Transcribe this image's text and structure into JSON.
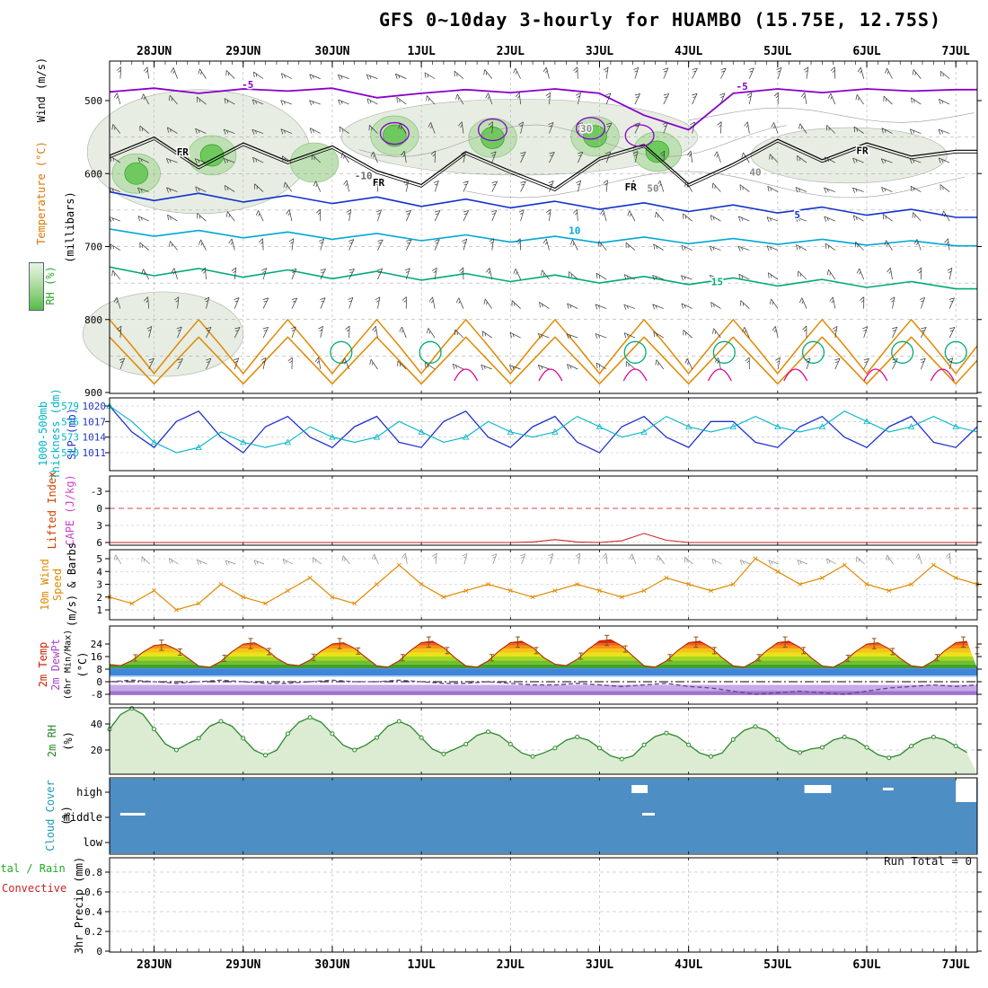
{
  "title": "GFS 0~10day 3-hourly for HUAMBO (15.75E, 12.75S)",
  "axis": {
    "day_labels": [
      "28JUN",
      "29JUN",
      "30JUN",
      "1JUL",
      "2JUL",
      "3JUL",
      "4JUL",
      "5JUL",
      "6JUL",
      "7JUL"
    ]
  },
  "side_labels": {
    "wind_ms": "Wind (m/s)",
    "temperature": "Temperature (°C)",
    "rh": "RH (%)",
    "millibars": "(millibars)",
    "thickness_a": "1000-500mb",
    "thickness_b": "Thickness (dm)",
    "slp": "SLP (mb)",
    "lifted_index": "Lifted Index",
    "cape": "CAPE (J/kg)",
    "wind10_a": "10m Wind",
    "wind10_b": "Speed",
    "wind10_c": "(m/s) & Barbs",
    "t2m_a": "2m Temp",
    "t2m_b": "2m DewPt",
    "t2m_c": "(6hr Min/Max)",
    "t2m_d": "(°C)",
    "rh2m_a": "2m RH",
    "rh2m_b": "(%)",
    "cloud_a": "Cloud Cover",
    "cloud_b": "(%)",
    "precip_a": "Total / Rain",
    "precip_b": "Convective",
    "precip_c": "3hr Precip (mm)",
    "run_total": "Run Total = 0"
  },
  "chart_data": [
    {
      "id": "upper_air",
      "type": "contour+barbs",
      "ylabel": "(millibars)",
      "y_ticks": [
        500,
        600,
        700,
        800,
        900
      ],
      "contours": [
        {
          "name": "temp-minus5",
          "label": "-5",
          "color": "#8800cc",
          "width": 1.8,
          "t_step": 0.5,
          "values": [
            488,
            483,
            490,
            484,
            487,
            483,
            496,
            490,
            485,
            489,
            484,
            490,
            520,
            540,
            490,
            484,
            489,
            484,
            487,
            485
          ]
        },
        {
          "name": "freezing-level",
          "label": "FR",
          "color": "#000000",
          "width": 1.2,
          "double": true,
          "t_step": 0.5,
          "values": [
            575,
            550,
            590,
            558,
            583,
            562,
            596,
            615,
            570,
            596,
            620,
            578,
            560,
            614,
            586,
            553,
            581,
            558,
            576,
            568
          ]
        },
        {
          "name": "temp-5",
          "label": "5",
          "color": "#1133cc",
          "width": 1.6,
          "t_step": 0.5,
          "values": [
            625,
            637,
            627,
            639,
            630,
            641,
            632,
            645,
            635,
            647,
            638,
            649,
            640,
            652,
            643,
            654,
            646,
            657,
            649,
            660
          ]
        },
        {
          "name": "temp-10",
          "label": "10",
          "color": "#00a8d8",
          "width": 1.6,
          "t_step": 0.5,
          "values": [
            676,
            686,
            678,
            688,
            680,
            690,
            682,
            692,
            684,
            694,
            686,
            695,
            687,
            696,
            689,
            697,
            690,
            698,
            692,
            699
          ]
        },
        {
          "name": "temp-15",
          "label": "15",
          "color": "#00aa77",
          "width": 1.6,
          "t_step": 0.5,
          "values": [
            728,
            740,
            730,
            742,
            732,
            744,
            734,
            746,
            737,
            748,
            739,
            750,
            741,
            752,
            743,
            754,
            745,
            756,
            748,
            758
          ]
        },
        {
          "name": "temp-20a",
          "color": "#e08a00",
          "width": 1.5,
          "t_step": 0.25,
          "pattern": [
            800,
            836,
            874,
            836
          ],
          "repeat": 10
        },
        {
          "name": "temp-20b",
          "color": "#e08a00",
          "width": 1.5,
          "t_step": 0.25,
          "pattern": [
            824,
            856,
            888,
            856
          ],
          "repeat": 10
        }
      ],
      "closed_contours": [
        {
          "color": "#8800cc",
          "rt": 0.16,
          "rp": 12,
          "ellipses": [
            [
              3.2,
              545
            ],
            [
              4.3,
              540
            ],
            [
              5.4,
              538
            ],
            [
              5.95,
              548
            ]
          ]
        },
        {
          "color": "#00aa77",
          "rt": 0.12,
          "rp": 12,
          "ellipses": [
            [
              2.6,
              845
            ],
            [
              3.6,
              845
            ],
            [
              5.9,
              845
            ],
            [
              6.9,
              845
            ],
            [
              7.9,
              845
            ],
            [
              8.9,
              845
            ],
            [
              9.5,
              845
            ]
          ]
        }
      ],
      "magenta_arcs": {
        "color": "#dd0099",
        "ts": [
          4.0,
          4.95,
          5.9,
          6.85,
          7.7,
          8.6,
          9.35
        ],
        "p_base": 884,
        "p_top": 852
      },
      "labels": [
        {
          "text": "-5",
          "t": 1.55,
          "p": 478,
          "color": "#8800cc"
        },
        {
          "text": "-5",
          "t": 7.1,
          "p": 480,
          "color": "#8800cc"
        },
        {
          "text": "FR",
          "t": 0.82,
          "p": 570,
          "color": "#000000"
        },
        {
          "text": "FR",
          "t": 3.02,
          "p": 612,
          "color": "#000000"
        },
        {
          "text": "FR",
          "t": 5.85,
          "p": 618,
          "color": "#000000"
        },
        {
          "text": "FR",
          "t": 8.45,
          "p": 568,
          "color": "#000000"
        },
        {
          "text": "5",
          "t": 7.72,
          "p": 656,
          "color": "#1133cc"
        },
        {
          "text": "10",
          "t": 5.22,
          "p": 678,
          "color": "#00a8d8"
        },
        {
          "text": "15",
          "t": 6.82,
          "p": 748,
          "color": "#00aa77"
        },
        {
          "text": "30",
          "t": 5.35,
          "p": 538,
          "color": "#888888"
        },
        {
          "text": "40",
          "t": 7.25,
          "p": 598,
          "color": "#888888"
        },
        {
          "text": "50",
          "t": 6.1,
          "p": 620,
          "color": "#888888"
        },
        {
          "text": "-10",
          "t": 2.85,
          "p": 603,
          "color": "#666666"
        }
      ],
      "rh_shading": {
        "pale": [
          {
            "t": 1.0,
            "p": 570,
            "rt": 1.25,
            "rp": 85
          },
          {
            "t": 4.6,
            "p": 550,
            "rt": 2.0,
            "rp": 52
          },
          {
            "t": 0.6,
            "p": 820,
            "rt": 0.9,
            "rp": 58
          },
          {
            "t": 8.3,
            "p": 575,
            "rt": 1.1,
            "rp": 38
          }
        ],
        "mid": [
          [
            0.3,
            600
          ],
          [
            1.15,
            575
          ],
          [
            2.3,
            585
          ],
          [
            3.2,
            548
          ],
          [
            4.3,
            551
          ],
          [
            5.45,
            549
          ],
          [
            6.15,
            570
          ]
        ],
        "bright": [
          [
            0.3,
            600
          ],
          [
            1.15,
            575
          ],
          [
            3.2,
            548
          ],
          [
            4.3,
            551
          ],
          [
            5.45,
            549
          ],
          [
            6.15,
            570
          ]
        ]
      }
    },
    {
      "id": "slp_thickness",
      "type": "line",
      "t_step": 0.25,
      "series": [
        {
          "name": "SLP (mb)",
          "color": "#2233cc",
          "ticks": [
            1020,
            1017,
            1014,
            1011
          ],
          "values": [
            1020,
            1015,
            1012,
            1017,
            1019,
            1014,
            1011,
            1016,
            1018,
            1014,
            1012,
            1016,
            1018,
            1013,
            1012,
            1017,
            1019,
            1014,
            1012,
            1016,
            1018,
            1013,
            1011,
            1016,
            1018,
            1014,
            1012,
            1017,
            1017,
            1013,
            1012,
            1016,
            1018,
            1014,
            1012,
            1016,
            1018,
            1013,
            1012,
            1016
          ]
        },
        {
          "name": "1000-500mb Thickness (dm)",
          "color": "#00b5c8",
          "marker": "triangle",
          "ticks": [
            579,
            576,
            573,
            570
          ],
          "values": [
            579,
            576,
            572,
            570,
            571,
            574,
            572,
            571,
            572,
            575,
            573,
            572,
            573,
            576,
            574,
            572,
            573,
            576,
            574,
            573,
            574,
            577,
            575,
            573,
            574,
            577,
            575,
            574,
            575,
            577,
            575,
            574,
            575,
            578,
            576,
            574,
            575,
            577,
            575,
            574
          ]
        }
      ]
    },
    {
      "id": "lifted_index",
      "type": "line",
      "y_ticks": [
        -3,
        0,
        3,
        6
      ],
      "zero_line": 0,
      "t_step": 0.25,
      "series": [
        {
          "name": "Lifted Index",
          "color": "#cc2222",
          "values": [
            6,
            6,
            6,
            6,
            6,
            6,
            6,
            6,
            6,
            6,
            6,
            6,
            6,
            6,
            6,
            6,
            6,
            6,
            6,
            5.9,
            5.5,
            5.9,
            6,
            5.7,
            4.4,
            5.6,
            6,
            6,
            6,
            6,
            6,
            6,
            6,
            6,
            6,
            6,
            6,
            6,
            6,
            6
          ]
        }
      ],
      "cape_values": "none visible (0)"
    },
    {
      "id": "wind10m",
      "type": "line+barbs",
      "y_ticks": [
        5,
        4,
        3,
        2,
        1
      ],
      "t_step": 0.25,
      "series": [
        {
          "name": "10m Wind Speed",
          "color": "#e08a00",
          "values": [
            2,
            1.5,
            2.5,
            1,
            1.5,
            3,
            2,
            1.5,
            2.5,
            3.5,
            2,
            1.5,
            3,
            4.5,
            3,
            2,
            2.5,
            3,
            2.5,
            2,
            2.5,
            3,
            2.5,
            2,
            2.5,
            3.5,
            3,
            2.5,
            3,
            5,
            4,
            3,
            3.5,
            4.5,
            3,
            2.5,
            3,
            4.5,
            3.5,
            3
          ]
        }
      ]
    },
    {
      "id": "temp2m",
      "type": "area",
      "y_ticks": [
        24,
        16,
        8,
        0,
        -8
      ],
      "daily_max": [
        24,
        25,
        25,
        26,
        26,
        27,
        26,
        26,
        25,
        26
      ],
      "daily_min": [
        10,
        9,
        10,
        9,
        9,
        10,
        9,
        9,
        9,
        9
      ],
      "color_bands": [
        [
          8.5,
          11,
          "#3fa02f"
        ],
        [
          11,
          13.5,
          "#6ebf2a"
        ],
        [
          13.5,
          16,
          "#a6d622"
        ],
        [
          16,
          18.5,
          "#e8e41c"
        ],
        [
          18.5,
          21,
          "#f5c414"
        ],
        [
          21,
          23,
          "#f59414"
        ],
        [
          23,
          24.5,
          "#ef5f10"
        ],
        [
          24.5,
          28,
          "#e02a10"
        ]
      ],
      "fixed_bands": [
        [
          4,
          8.5,
          "#3f86da"
        ],
        [
          3,
          4,
          "#a6cdf0"
        ],
        [
          -6,
          -2,
          "#c9a9e8"
        ],
        [
          -8.5,
          -6,
          "#9c74ce"
        ]
      ],
      "dewpoint": {
        "color": "#664488",
        "t_step": 0.25,
        "values": [
          0,
          1,
          0,
          -1,
          0,
          1,
          0,
          -1,
          -1,
          0,
          1,
          0,
          0,
          1,
          0,
          -1,
          -1,
          0,
          -1,
          -2,
          -2,
          -1,
          -2,
          -3,
          -2,
          -1,
          -3,
          -4,
          -6,
          -8,
          -7,
          -6,
          -7,
          -8,
          -6,
          -4,
          -3,
          -2,
          -3,
          -2
        ]
      }
    },
    {
      "id": "rh2m",
      "type": "area",
      "y_ticks": [
        40,
        20
      ],
      "daily_max": [
        52,
        42,
        45,
        42,
        34,
        30,
        33,
        38,
        30,
        30
      ],
      "daily_min": [
        20,
        16,
        20,
        17,
        15,
        13,
        15,
        18,
        14,
        16
      ],
      "line_color": "#2d8a2d"
    },
    {
      "id": "cloud_cover",
      "type": "heatmap",
      "rows": [
        "high",
        "middle",
        "low"
      ],
      "fill_color": "#4d8ec5",
      "coverage": "overcast",
      "gaps": [
        {
          "row": "middle",
          "t0": 0.12,
          "t1": 0.4,
          "style": "thin"
        },
        {
          "row": "high",
          "t0": 5.86,
          "t1": 6.04,
          "style": "block"
        },
        {
          "row": "middle",
          "t0": 5.98,
          "t1": 6.12,
          "style": "thin"
        },
        {
          "row": "high",
          "t0": 7.8,
          "t1": 8.1,
          "style": "block"
        },
        {
          "row": "high",
          "t0": 8.68,
          "t1": 8.8,
          "style": "thin"
        },
        {
          "row": "high",
          "t0": 9.5,
          "t1": 9.73,
          "style": "tall"
        }
      ]
    },
    {
      "id": "precip",
      "type": "bar",
      "y_ticks": [
        0.8,
        0.6,
        0.4,
        0.2,
        0
      ],
      "all_values_zero": true,
      "run_total": 0
    }
  ]
}
